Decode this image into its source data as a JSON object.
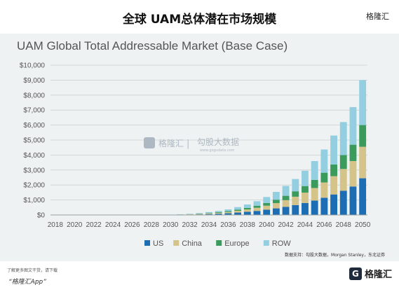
{
  "header": {
    "title": "全球 UAM总体潜在市场规模",
    "brand": "格隆汇"
  },
  "watermark": {
    "logo": "格隆汇",
    "divider": "|",
    "text": "勾股大数据",
    "url": "www.gogudata.com"
  },
  "source": "数据支持：勾股大数据，Morgan Stanley，东北证券",
  "footer": {
    "hint": "了解更多图文干货，请下载",
    "app": "“格隆汇App”",
    "logo_mark": "G",
    "logo_text": "格隆汇"
  },
  "colors": {
    "US": "#1c6db3",
    "China": "#d5c489",
    "Europe": "#3a9b5c",
    "ROW": "#93cfe1",
    "grid": "#c9cfcf",
    "axis_text": "#555555"
  },
  "chart_data": {
    "type": "bar",
    "stacked": true,
    "title": "UAM Global Total Addressable Market (Base Case)",
    "xlabel": "",
    "ylabel": "",
    "ylim": [
      0,
      10000
    ],
    "y_ticks": [
      "$0",
      "$1,000",
      "$2,000",
      "$3,000",
      "$4,000",
      "$5,000",
      "$6,000",
      "$7,000",
      "$8,000",
      "$9,000",
      "$10,000"
    ],
    "grid": true,
    "legend_position": "bottom",
    "x_tick_labels": [
      "2018",
      "2020",
      "2022",
      "2024",
      "2026",
      "2028",
      "2030",
      "2032",
      "2034",
      "2036",
      "2038",
      "2040",
      "2042",
      "2044",
      "2046",
      "2048",
      "2050"
    ],
    "categories": [
      "2018",
      "2019",
      "2020",
      "2021",
      "2022",
      "2023",
      "2024",
      "2025",
      "2026",
      "2027",
      "2028",
      "2029",
      "2030",
      "2031",
      "2032",
      "2033",
      "2034",
      "2035",
      "2036",
      "2037",
      "2038",
      "2039",
      "2040",
      "2041",
      "2042",
      "2043",
      "2044",
      "2045",
      "2046",
      "2047",
      "2048",
      "2049",
      "2050"
    ],
    "series": [
      {
        "name": "US",
        "values": [
          0,
          0,
          0,
          0,
          0,
          0,
          0,
          0,
          0,
          0,
          0,
          2,
          8,
          15,
          25,
          40,
          60,
          85,
          115,
          160,
          210,
          270,
          350,
          440,
          540,
          660,
          800,
          960,
          1150,
          1370,
          1620,
          1900,
          2450
        ]
      },
      {
        "name": "China",
        "values": [
          0,
          0,
          0,
          0,
          0,
          0,
          0,
          0,
          0,
          0,
          0,
          1,
          5,
          10,
          18,
          28,
          42,
          60,
          85,
          120,
          160,
          210,
          270,
          350,
          450,
          560,
          690,
          840,
          1020,
          1220,
          1450,
          1700,
          2100
        ]
      },
      {
        "name": "Europe",
        "values": [
          0,
          0,
          0,
          0,
          0,
          0,
          0,
          0,
          0,
          0,
          0,
          1,
          4,
          8,
          12,
          20,
          30,
          42,
          58,
          80,
          105,
          140,
          180,
          230,
          290,
          360,
          440,
          540,
          650,
          780,
          930,
          1090,
          1450
        ]
      },
      {
        "name": "ROW",
        "values": [
          0,
          0,
          0,
          0,
          0,
          0,
          0,
          0,
          0,
          0,
          0,
          2,
          8,
          15,
          25,
          40,
          60,
          83,
          117,
          165,
          225,
          300,
          400,
          520,
          660,
          820,
          1020,
          1260,
          1550,
          1930,
          2200,
          2510,
          3000
        ]
      }
    ]
  }
}
